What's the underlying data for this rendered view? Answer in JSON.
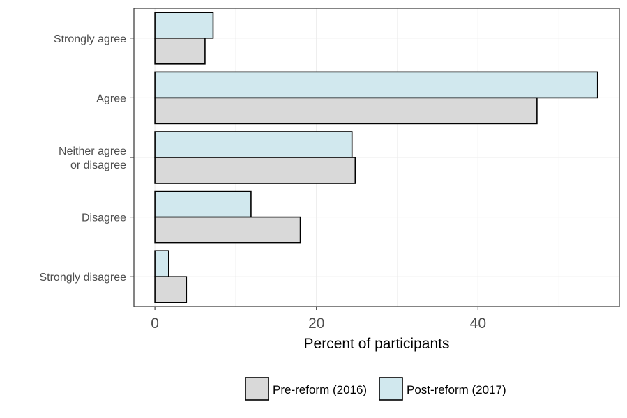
{
  "chart_data": {
    "type": "bar",
    "orientation": "horizontal",
    "categories": [
      "Strongly agree",
      "Agree",
      "Neither agree\nor disagree",
      "Disagree",
      "Strongly disagree"
    ],
    "series": [
      {
        "name": "Pre-reform (2016)",
        "values": [
          6.2,
          47.3,
          24.8,
          18.0,
          3.9
        ],
        "color": "#d9d9d9"
      },
      {
        "name": "Post-reform (2017)",
        "values": [
          7.2,
          54.8,
          24.4,
          11.9,
          1.7
        ],
        "color": "#d1e8ee"
      }
    ],
    "xlabel": "Percent of participants",
    "ylabel": "",
    "xlim": [
      -2.6,
      57.5
    ],
    "xticks": [
      0,
      20,
      40
    ],
    "xtick_labels": [
      "0",
      "20",
      "40"
    ],
    "grid": true,
    "legend_position": "bottom"
  }
}
